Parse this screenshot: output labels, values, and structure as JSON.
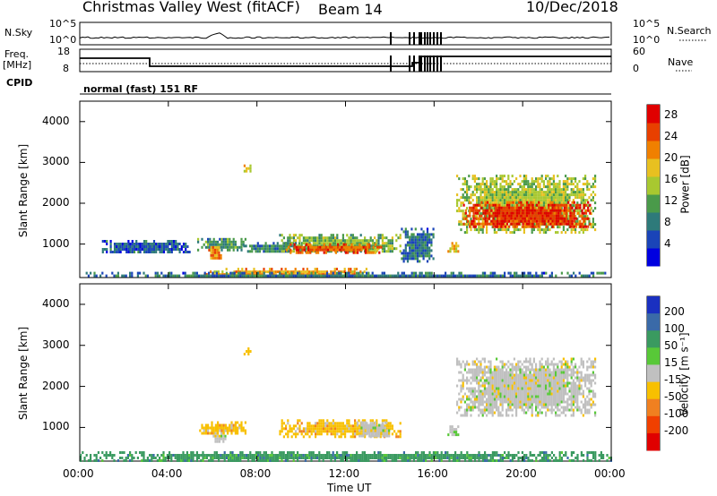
{
  "header": {
    "title": "Christmas Valley West (fitACF)",
    "beam": "Beam 14",
    "date": "10/Dec/2018"
  },
  "aux": {
    "nsky_label": "N.Sky",
    "nsky_ticks": [
      "10^5",
      "10^0"
    ],
    "nsearch_label": "N.Search",
    "nsearch_ticks": [
      "10^5",
      "10^0"
    ],
    "freq_label_1": "Freq.",
    "freq_label_2": "[MHz]",
    "freq_ticks": [
      "18",
      "8"
    ],
    "nave_label": "Nave",
    "nave_ticks": [
      "60",
      "0"
    ],
    "cpid_label": "CPID",
    "cpid_text": "normal (fast) 151 RF"
  },
  "colors": {
    "noise_line": "#000000",
    "no_data_bg": "#ffffff",
    "ground_scatter": "#c0c0c0"
  },
  "chart_data": [
    {
      "type": "heatmap",
      "name": "power",
      "x_unit": "Time UT (hours)",
      "xlim": [
        0,
        24
      ],
      "ylim": [
        180,
        4500
      ],
      "ylabel": "Slant Range [km]",
      "y_ticks": [
        "1000",
        "2000",
        "3000",
        "4000"
      ],
      "x_ticks": [
        "00:00",
        "04:00",
        "08:00",
        "12:00",
        "16:00",
        "20:00",
        "00:00"
      ],
      "xlabel": "Time UT",
      "colorbar": {
        "label": "Power [dB]",
        "ticks": [
          "4",
          "8",
          "12",
          "16",
          "20",
          "24",
          "28"
        ],
        "range": [
          0,
          30
        ],
        "colors": [
          "#0000e0",
          "#1a44b8",
          "#2e7a7a",
          "#4a9a4a",
          "#a8c830",
          "#e8c020",
          "#f08000",
          "#e84000",
          "#e00000"
        ]
      },
      "regions": [
        {
          "t": [
            5.3,
            7.5
          ],
          "r": [
            880,
            1150
          ],
          "level": 10
        },
        {
          "t": [
            5.8,
            6.4
          ],
          "r": [
            650,
            950
          ],
          "level": 22
        },
        {
          "t": [
            7.2,
            10.0
          ],
          "r": [
            800,
            1050
          ],
          "level": 9
        },
        {
          "t": [
            9.0,
            14.5
          ],
          "r": [
            800,
            1250
          ],
          "level": 13
        },
        {
          "t": [
            9.3,
            13.6
          ],
          "r": [
            800,
            1020
          ],
          "level": 24
        },
        {
          "t": [
            5.6,
            13.0
          ],
          "r": [
            250,
            420
          ],
          "level": 20
        },
        {
          "t": [
            14.5,
            16.0
          ],
          "r": [
            600,
            1400
          ],
          "level": 8
        },
        {
          "t": [
            16.6,
            17.1
          ],
          "r": [
            820,
            1050
          ],
          "level": 18
        },
        {
          "t": [
            17.0,
            23.3
          ],
          "r": [
            1300,
            2700
          ],
          "level": 15
        },
        {
          "t": [
            17.3,
            23.0
          ],
          "r": [
            1400,
            2050
          ],
          "level": 26
        },
        {
          "t": [
            0.0,
            24.0
          ],
          "r": [
            200,
            320
          ],
          "level": 8
        },
        {
          "t": [
            1.0,
            5.0
          ],
          "r": [
            800,
            1100
          ],
          "level": 6
        },
        {
          "t": [
            7.4,
            7.7
          ],
          "r": [
            2800,
            2950
          ],
          "level": 20
        }
      ]
    },
    {
      "type": "heatmap",
      "name": "velocity",
      "x_unit": "Time UT (hours)",
      "xlim": [
        0,
        24
      ],
      "ylim": [
        180,
        4500
      ],
      "ylabel": "Slant Range [km]",
      "y_ticks": [
        "1000",
        "2000",
        "3000",
        "4000"
      ],
      "x_ticks": [
        "00:00",
        "04:00",
        "08:00",
        "12:00",
        "16:00",
        "20:00",
        "00:00"
      ],
      "xlabel": "Time UT",
      "colorbar": {
        "label": "Velocity [m s⁻¹]",
        "ticks": [
          "200",
          "100",
          "50",
          "15",
          "-15",
          "-50",
          "-100",
          "-200"
        ],
        "colors": [
          "#1a30c0",
          "#3a6aa8",
          "#3a9a60",
          "#58c838",
          "#c0c0c0",
          "#f8c000",
          "#f08020",
          "#f04000",
          "#e00000"
        ]
      },
      "regions": [
        {
          "t": [
            5.3,
            7.5
          ],
          "r": [
            850,
            1150
          ],
          "level": "-50"
        },
        {
          "t": [
            6.0,
            6.6
          ],
          "r": [
            650,
            950
          ],
          "level": "15"
        },
        {
          "t": [
            9.0,
            14.5
          ],
          "r": [
            800,
            1200
          ],
          "level": "-50"
        },
        {
          "t": [
            12.5,
            14.0
          ],
          "r": [
            800,
            1150
          ],
          "level": "15"
        },
        {
          "t": [
            0.0,
            24.0
          ],
          "r": [
            200,
            420
          ],
          "level": "50"
        },
        {
          "t": [
            16.6,
            17.1
          ],
          "r": [
            820,
            1050
          ],
          "level": "15"
        },
        {
          "t": [
            17.0,
            23.3
          ],
          "r": [
            1300,
            2700
          ],
          "level": "15"
        },
        {
          "t": [
            7.4,
            7.7
          ],
          "r": [
            2800,
            2950
          ],
          "level": "-50"
        }
      ]
    }
  ]
}
